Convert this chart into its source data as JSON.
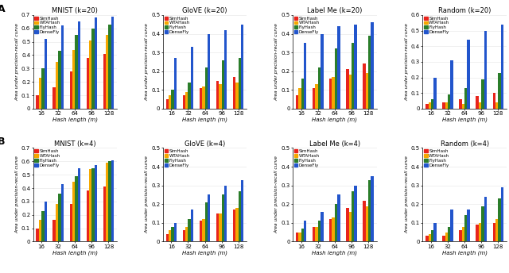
{
  "row_labels": [
    "A",
    "B"
  ],
  "col_titles_k20": [
    "MNIST (k=20)",
    "GloVE (k=20)",
    "Label Me (k=20)",
    "Random (k=20)"
  ],
  "col_titles_k4": [
    "MNIST (k=4)",
    "GloVE (k=4)",
    "Label Me (k=4)",
    "Random (k=4)"
  ],
  "hash_lengths_labels": [
    "16",
    "32",
    "64",
    "96",
    "128"
  ],
  "methods": [
    "SimHash",
    "WTAHash",
    "FlyHash",
    "DenseFly"
  ],
  "colors": [
    "#e8241c",
    "#f5a800",
    "#2a7d2a",
    "#2255cc"
  ],
  "xlabel": "Hash length (m)",
  "ylabel": "Area under precision-recall curve",
  "data": {
    "A": {
      "MNIST (k=20)": {
        "SimHash": [
          0.1,
          0.16,
          0.28,
          0.38,
          0.41
        ],
        "WTAHash": [
          0.23,
          0.35,
          0.44,
          0.51,
          0.55
        ],
        "FlyHash": [
          0.3,
          0.43,
          0.55,
          0.6,
          0.63
        ],
        "DenseFly": [
          0.52,
          0.62,
          0.65,
          0.68,
          0.69
        ]
      },
      "GloVE (k=20)": {
        "SimHash": [
          0.05,
          0.07,
          0.11,
          0.15,
          0.17
        ],
        "WTAHash": [
          0.07,
          0.09,
          0.12,
          0.13,
          0.14
        ],
        "FlyHash": [
          0.1,
          0.14,
          0.22,
          0.26,
          0.27
        ],
        "DenseFly": [
          0.27,
          0.33,
          0.4,
          0.42,
          0.45
        ]
      },
      "Label Me (k=20)": {
        "SimHash": [
          0.07,
          0.11,
          0.16,
          0.21,
          0.24
        ],
        "WTAHash": [
          0.11,
          0.13,
          0.17,
          0.18,
          0.19
        ],
        "FlyHash": [
          0.16,
          0.22,
          0.32,
          0.35,
          0.39
        ],
        "DenseFly": [
          0.35,
          0.4,
          0.44,
          0.45,
          0.46
        ]
      },
      "Random (k=20)": {
        "SimHash": [
          0.03,
          0.04,
          0.06,
          0.08,
          0.1
        ],
        "WTAHash": [
          0.04,
          0.04,
          0.03,
          0.04,
          0.04
        ],
        "FlyHash": [
          0.06,
          0.09,
          0.13,
          0.19,
          0.23
        ],
        "DenseFly": [
          0.2,
          0.31,
          0.44,
          0.5,
          0.54
        ]
      }
    },
    "B": {
      "MNIST (k=4)": {
        "SimHash": [
          0.1,
          0.16,
          0.28,
          0.38,
          0.41
        ],
        "WTAHash": [
          0.16,
          0.28,
          0.45,
          0.54,
          0.59
        ],
        "FlyHash": [
          0.23,
          0.36,
          0.49,
          0.55,
          0.6
        ],
        "DenseFly": [
          0.3,
          0.43,
          0.55,
          0.57,
          0.61
        ]
      },
      "GloVE (k=4)": {
        "SimHash": [
          0.04,
          0.06,
          0.11,
          0.15,
          0.17
        ],
        "WTAHash": [
          0.06,
          0.08,
          0.12,
          0.15,
          0.18
        ],
        "FlyHash": [
          0.08,
          0.12,
          0.21,
          0.25,
          0.27
        ],
        "DenseFly": [
          0.1,
          0.17,
          0.25,
          0.3,
          0.33
        ]
      },
      "Label Me (k=4)": {
        "SimHash": [
          0.05,
          0.08,
          0.12,
          0.18,
          0.22
        ],
        "WTAHash": [
          0.05,
          0.08,
          0.13,
          0.16,
          0.19
        ],
        "FlyHash": [
          0.07,
          0.11,
          0.2,
          0.27,
          0.33
        ],
        "DenseFly": [
          0.11,
          0.16,
          0.25,
          0.3,
          0.35
        ]
      },
      "Random (k=4)": {
        "SimHash": [
          0.03,
          0.03,
          0.06,
          0.09,
          0.1
        ],
        "WTAHash": [
          0.04,
          0.05,
          0.08,
          0.1,
          0.12
        ],
        "FlyHash": [
          0.06,
          0.08,
          0.14,
          0.19,
          0.23
        ],
        "DenseFly": [
          0.1,
          0.17,
          0.17,
          0.24,
          0.29
        ]
      }
    }
  },
  "ylims": {
    "A": {
      "MNIST (k=20)": [
        0,
        0.7
      ],
      "GloVE (k=20)": [
        0,
        0.5
      ],
      "Label Me (k=20)": [
        0,
        0.5
      ],
      "Random (k=20)": [
        0,
        0.6
      ]
    },
    "B": {
      "MNIST (k=4)": [
        0,
        0.7
      ],
      "GloVE (k=4)": [
        0,
        0.5
      ],
      "Label Me (k=4)": [
        0,
        0.5
      ],
      "Random (k=4)": [
        0,
        0.5
      ]
    }
  },
  "yticks": {
    "0.7": [
      0,
      0.1,
      0.2,
      0.3,
      0.4,
      0.5,
      0.6,
      0.7
    ],
    "0.5": [
      0,
      0.1,
      0.2,
      0.3,
      0.4,
      0.5
    ],
    "0.6": [
      0,
      0.1,
      0.2,
      0.3,
      0.4,
      0.5,
      0.6
    ]
  }
}
